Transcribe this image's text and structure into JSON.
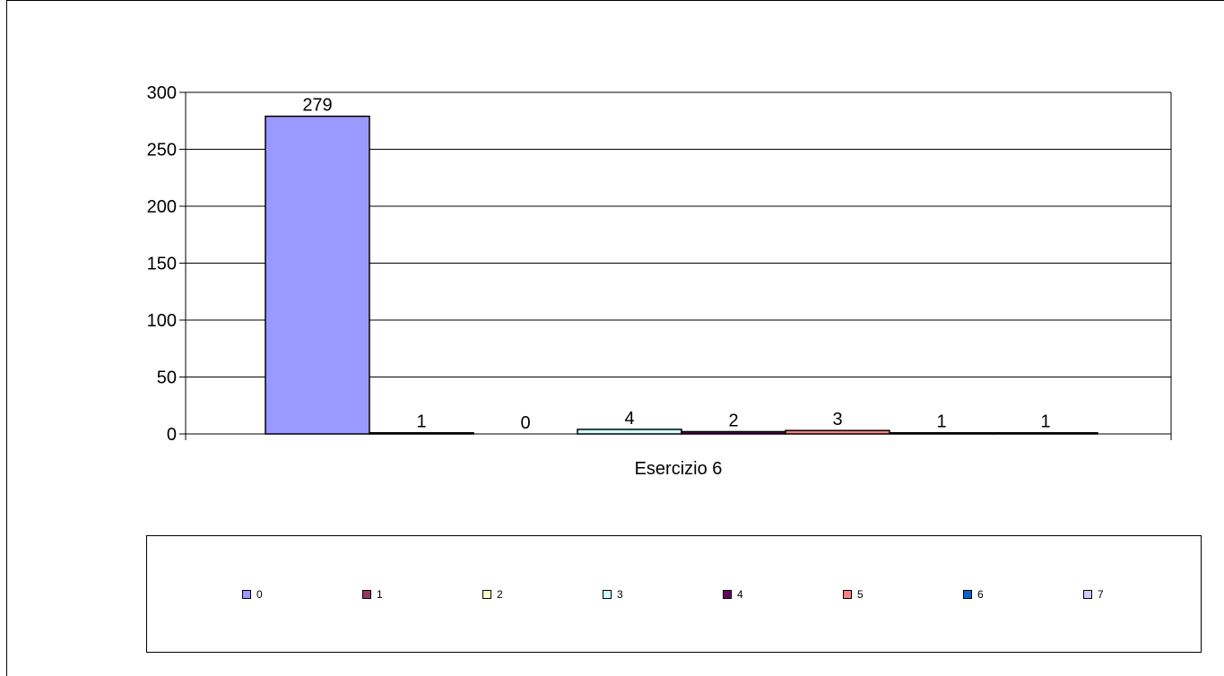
{
  "chart_data": {
    "type": "bar",
    "categories": [
      "Esercizio 6"
    ],
    "series": [
      {
        "name": "0",
        "values": [
          279
        ],
        "color": "#9999ff"
      },
      {
        "name": "1",
        "values": [
          1
        ],
        "color": "#993366"
      },
      {
        "name": "2",
        "values": [
          0
        ],
        "color": "#ffffcc"
      },
      {
        "name": "3",
        "values": [
          4
        ],
        "color": "#ccffff"
      },
      {
        "name": "4",
        "values": [
          2
        ],
        "color": "#660066"
      },
      {
        "name": "5",
        "values": [
          3
        ],
        "color": "#ff8080"
      },
      {
        "name": "6",
        "values": [
          1
        ],
        "color": "#0066cc"
      },
      {
        "name": "7",
        "values": [
          1
        ],
        "color": "#ccccff"
      }
    ],
    "ylim": [
      0,
      300
    ],
    "yticks": [
      "0",
      "50",
      "100",
      "150",
      "200",
      "250",
      "300"
    ],
    "grid": true,
    "legend_position": "bottom",
    "data_labels": [
      "279",
      "1",
      "0",
      "4",
      "2",
      "3",
      "1",
      "1"
    ]
  }
}
